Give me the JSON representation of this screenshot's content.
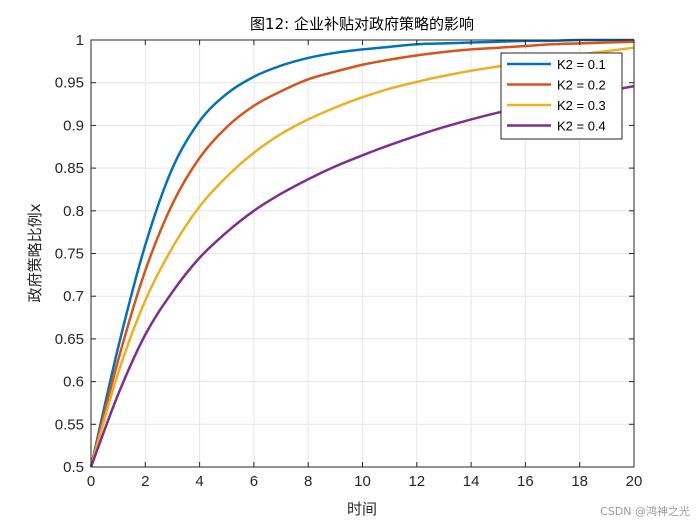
{
  "chart_data": {
    "type": "line",
    "title": "图12: 企业补贴对政府策略的影响",
    "xlabel": "时间",
    "ylabel": "政府策略比例x",
    "xlim": [
      0,
      20
    ],
    "ylim": [
      0.5,
      1
    ],
    "x_ticks": [
      "0",
      "2",
      "4",
      "6",
      "8",
      "10",
      "12",
      "14",
      "16",
      "18",
      "20"
    ],
    "y_ticks": [
      "0.5",
      "0.55",
      "0.6",
      "0.65",
      "0.7",
      "0.75",
      "0.8",
      "0.85",
      "0.9",
      "0.95",
      "1"
    ],
    "grid": true,
    "legend_position": "top-right",
    "x": [
      0,
      1,
      2,
      3,
      4,
      5,
      6,
      7,
      8,
      9,
      10,
      11,
      12,
      13,
      14,
      15,
      16,
      17,
      18,
      19,
      20
    ],
    "series": [
      {
        "name": "K2 = 0.1",
        "color": "#0072BD",
        "values": [
          0.5,
          0.64,
          0.76,
          0.85,
          0.905,
          0.937,
          0.957,
          0.97,
          0.979,
          0.985,
          0.989,
          0.992,
          0.995,
          0.996,
          0.997,
          0.998,
          0.999,
          0.999,
          1.0,
          1.0,
          1.0
        ]
      },
      {
        "name": "K2 = 0.2",
        "color": "#D95319",
        "values": [
          0.5,
          0.625,
          0.73,
          0.808,
          0.862,
          0.898,
          0.923,
          0.94,
          0.954,
          0.963,
          0.971,
          0.977,
          0.982,
          0.986,
          0.989,
          0.991,
          0.993,
          0.995,
          0.996,
          0.997,
          0.998
        ]
      },
      {
        "name": "K2 = 0.3",
        "color": "#EDB120",
        "values": [
          0.5,
          0.61,
          0.695,
          0.757,
          0.805,
          0.84,
          0.868,
          0.89,
          0.907,
          0.921,
          0.933,
          0.943,
          0.951,
          0.958,
          0.964,
          0.969,
          0.974,
          0.978,
          0.983,
          0.987,
          0.991
        ]
      },
      {
        "name": "K2 = 0.4",
        "color": "#7E2F8E",
        "values": [
          0.5,
          0.585,
          0.655,
          0.705,
          0.745,
          0.775,
          0.8,
          0.82,
          0.837,
          0.852,
          0.865,
          0.877,
          0.888,
          0.898,
          0.907,
          0.915,
          0.922,
          0.928,
          0.934,
          0.94,
          0.946
        ]
      }
    ]
  },
  "watermark": "CSDN @鸿神之光"
}
